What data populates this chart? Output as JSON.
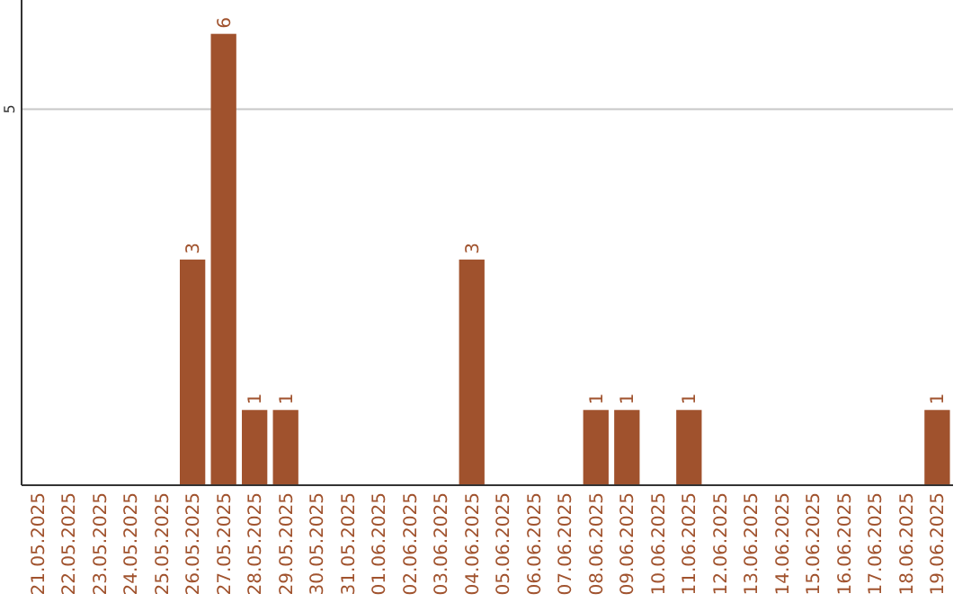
{
  "chart_data": {
    "type": "bar",
    "categories": [
      "21.05.2025",
      "22.05.2025",
      "23.05.2025",
      "24.05.2025",
      "25.05.2025",
      "26.05.2025",
      "27.05.2025",
      "28.05.2025",
      "29.05.2025",
      "30.05.2025",
      "31.05.2025",
      "01.06.2025",
      "02.06.2025",
      "03.06.2025",
      "04.06.2025",
      "05.06.2025",
      "06.06.2025",
      "07.06.2025",
      "08.06.2025",
      "09.06.2025",
      "10.06.2025",
      "11.06.2025",
      "12.06.2025",
      "13.06.2025",
      "14.06.2025",
      "15.06.2025",
      "16.06.2025",
      "17.06.2025",
      "18.06.2025",
      "19.06.2025"
    ],
    "values": [
      0,
      0,
      0,
      0,
      0,
      3,
      6,
      1,
      1,
      0,
      0,
      0,
      0,
      0,
      3,
      0,
      0,
      0,
      1,
      1,
      0,
      1,
      0,
      0,
      0,
      0,
      0,
      0,
      0,
      1
    ],
    "value_labels": [
      null,
      null,
      null,
      null,
      null,
      "3",
      "6",
      "1",
      "1",
      null,
      null,
      null,
      null,
      null,
      "3",
      null,
      null,
      null,
      "1",
      "1",
      null,
      "1",
      null,
      null,
      null,
      null,
      null,
      null,
      null,
      "1"
    ],
    "color": "#a0522d",
    "ylim": [
      0,
      6.45
    ],
    "yticks": [
      5
    ],
    "grid": "y"
  }
}
